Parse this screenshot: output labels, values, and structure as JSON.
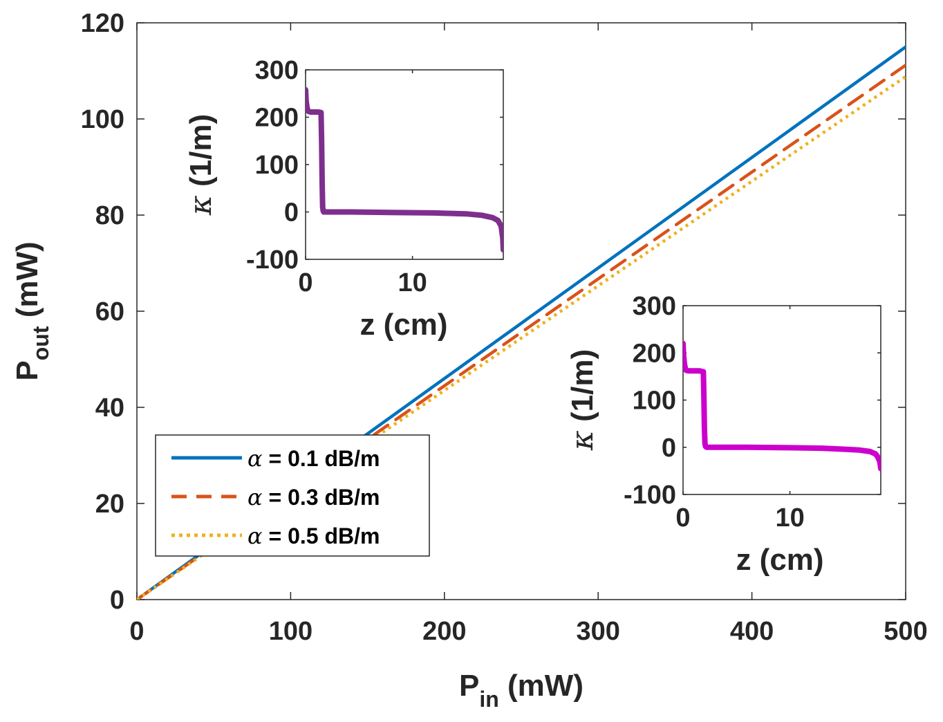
{
  "chart_data": [
    {
      "type": "line",
      "title": "",
      "xlabel_main": "P",
      "xlabel_sub": "in",
      "xlabel_unit": " (mW)",
      "ylabel_main": "P",
      "ylabel_sub": "out",
      "ylabel_unit": " (mW)",
      "xlim": [
        0,
        500
      ],
      "ylim": [
        0,
        120
      ],
      "xticks": [
        0,
        100,
        200,
        300,
        400,
        500
      ],
      "yticks": [
        0,
        20,
        40,
        60,
        80,
        100,
        120
      ],
      "legend_position": "bottom-left",
      "series": [
        {
          "name_greek": "α",
          "name_text": " = 0.1 dB/m",
          "color": "#0072BD",
          "style": "solid",
          "x": [
            0,
            500
          ],
          "y": [
            0,
            115
          ]
        },
        {
          "name_greek": "α",
          "name_text": " = 0.3 dB/m",
          "color": "#D95319",
          "style": "dashed",
          "x": [
            0,
            500
          ],
          "y": [
            0,
            111.2
          ]
        },
        {
          "name_greek": "α",
          "name_text": " = 0.5 dB/m",
          "color": "#EDB120",
          "style": "dotted",
          "x": [
            0,
            500
          ],
          "y": [
            0,
            108.8
          ]
        }
      ]
    },
    {
      "type": "line",
      "title": "",
      "xlabel": "z (cm)",
      "ylabel_greek": "κ",
      "ylabel_text": " (1/m)",
      "xlim": [
        0,
        18.5
      ],
      "ylim": [
        -100,
        300
      ],
      "xticks": [
        0,
        10
      ],
      "yticks": [
        -100,
        0,
        100,
        200,
        300
      ],
      "series": [
        {
          "name": "kappa-upper",
          "color": "#7E2F8E",
          "x": [
            0,
            0.05,
            0.12,
            0.2,
            0.3,
            0.5,
            0.8,
            1.2,
            1.45,
            1.5,
            1.55,
            1.6,
            1.65,
            1.7,
            2,
            4,
            8,
            12,
            15,
            16.5,
            17.5,
            18,
            18.3,
            18.45,
            18.5
          ],
          "y": [
            258,
            235,
            222,
            215,
            212,
            211,
            211,
            211,
            210,
            150,
            60,
            10,
            2,
            0,
            0,
            0,
            -1,
            -2,
            -4,
            -7,
            -12,
            -18,
            -30,
            -55,
            -80
          ]
        }
      ]
    },
    {
      "type": "line",
      "title": "",
      "xlabel": "z (cm)",
      "ylabel_greek": "κ",
      "ylabel_text": " (1/m)",
      "xlim": [
        0,
        18.5
      ],
      "ylim": [
        -100,
        300
      ],
      "xticks": [
        0,
        10
      ],
      "yticks": [
        -100,
        0,
        100,
        200,
        300
      ],
      "series": [
        {
          "name": "kappa-lower",
          "color": "#CC00CC",
          "x": [
            0,
            0.05,
            0.12,
            0.2,
            0.3,
            0.5,
            1,
            1.5,
            1.9,
            1.95,
            2.0,
            2.05,
            2.1,
            2.2,
            3,
            6,
            10,
            13,
            15,
            16.5,
            17.5,
            18,
            18.2,
            18.4,
            18.5
          ],
          "y": [
            220,
            195,
            178,
            168,
            163,
            162,
            162,
            162,
            160,
            110,
            40,
            8,
            2,
            0,
            0,
            0,
            -1,
            -2,
            -4,
            -6,
            -9,
            -14,
            -20,
            -30,
            -45
          ]
        }
      ]
    }
  ]
}
